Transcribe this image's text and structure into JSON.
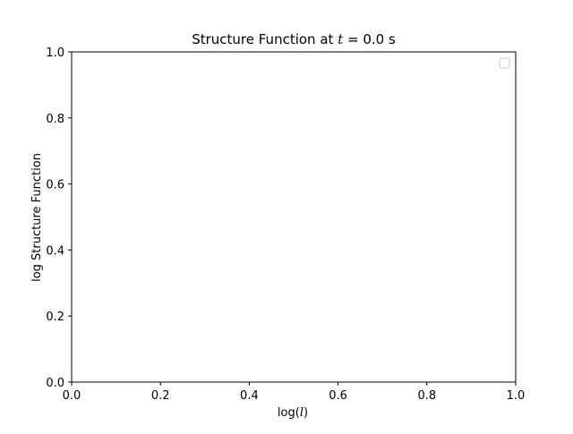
{
  "chart_data": {
    "type": "line",
    "title": "Structure Function at",
    "title_var": "t",
    "title_value": "= 0.0 s",
    "xlabel_prefix": "log(",
    "xlabel_var": "l",
    "xlabel_suffix": ")",
    "ylabel": "log Structure Function",
    "xlim": [
      0.0,
      1.0
    ],
    "ylim": [
      0.0,
      1.0
    ],
    "xticks": [
      0.0,
      0.2,
      0.4,
      0.6,
      0.8,
      1.0
    ],
    "yticks": [
      0.0,
      0.2,
      0.4,
      0.6,
      0.8,
      1.0
    ],
    "xtick_labels": [
      "0.0",
      "0.2",
      "0.4",
      "0.6",
      "0.8",
      "1.0"
    ],
    "ytick_labels": [
      "0.0",
      "0.2",
      "0.4",
      "0.6",
      "0.8",
      "1.0"
    ],
    "series": [],
    "legend": {
      "placement": "top-right",
      "entries": []
    },
    "grid": false
  }
}
